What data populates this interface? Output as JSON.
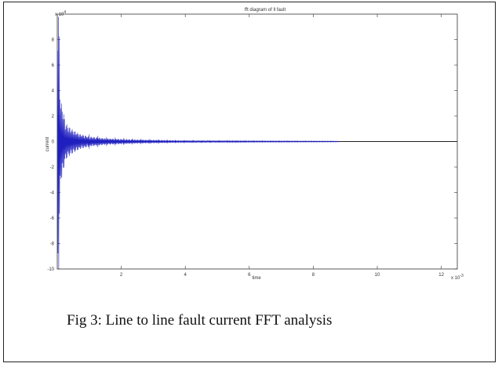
{
  "caption": "Fig 3: Line to line fault current FFT analysis",
  "chart_data": {
    "type": "line",
    "title": "fft diagram of ll fault",
    "xlabel": "time",
    "ylabel": "current",
    "x_exponent_label": "x 10",
    "x_exponent": "-3",
    "y_exponent_label": "x 10",
    "y_exponent": "4",
    "xlim": [
      0,
      12.5
    ],
    "ylim": [
      -10,
      10
    ],
    "xticks": [
      2,
      4,
      6,
      8,
      10,
      12
    ],
    "yticks": [
      -10,
      -8,
      -6,
      -4,
      -2,
      0,
      2,
      4,
      6,
      8
    ],
    "grid": false,
    "series": [
      {
        "color": "#1f1fbf",
        "envelope": [
          {
            "x": 0.02,
            "y": 10.0
          },
          {
            "x": 0.05,
            "y": -10.0
          },
          {
            "x": 0.1,
            "y": 3.0
          },
          {
            "x": 0.15,
            "y": -3.0
          },
          {
            "x": 0.25,
            "y": 1.5
          },
          {
            "x": 0.35,
            "y": -1.2
          },
          {
            "x": 0.5,
            "y": 0.9
          },
          {
            "x": 0.7,
            "y": -0.6
          },
          {
            "x": 1.0,
            "y": 0.4
          },
          {
            "x": 1.5,
            "y": 0.25
          },
          {
            "x": 2.5,
            "y": 0.15
          },
          {
            "x": 4.0,
            "y": 0.08
          },
          {
            "x": 6.0,
            "y": 0.05
          },
          {
            "x": 8.8,
            "y": 0.03
          }
        ]
      }
    ]
  }
}
